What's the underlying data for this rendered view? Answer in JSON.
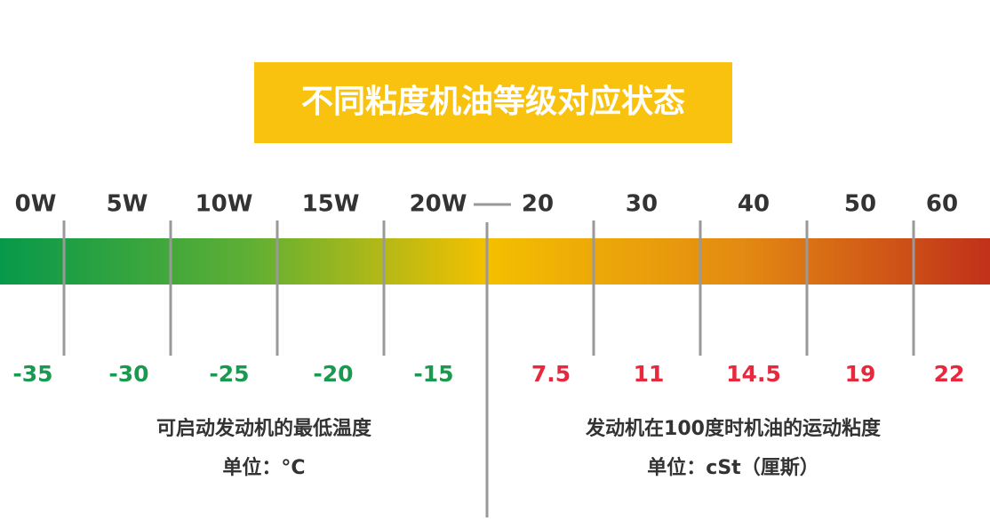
{
  "title": "不同粘度机油等级对应状态",
  "winter_grades": [
    "0W",
    "5W",
    "10W",
    "15W",
    "20W"
  ],
  "summer_grades": [
    "20",
    "30",
    "40",
    "50",
    "60"
  ],
  "min_start_temperatures": [
    "-35",
    "-30",
    "-25",
    "-20",
    "-15"
  ],
  "viscosities": [
    "7.5",
    "11",
    "14.5",
    "19",
    "22"
  ],
  "left_caption": {
    "label": "可启动发动机的最低温度",
    "unit": "单位：°C"
  },
  "right_caption": {
    "label": "发动机在100度时机油的运动粘度",
    "unit": "单位：cSt（厘斯）"
  }
}
